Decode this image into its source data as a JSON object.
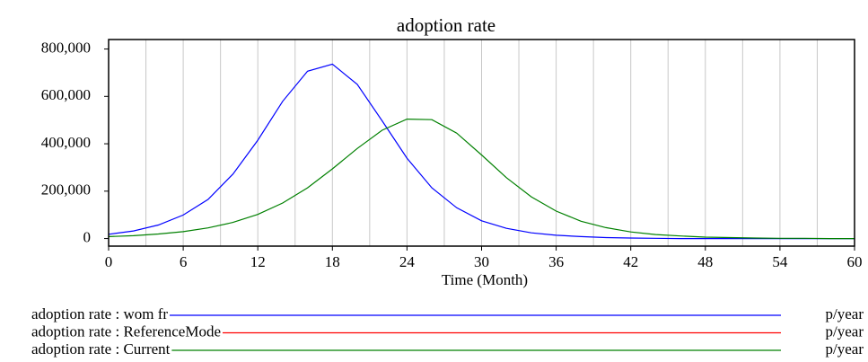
{
  "chart_data": {
    "type": "line",
    "title": "adoption rate",
    "x_label": "Time (Month)",
    "x": [
      0,
      2,
      4,
      6,
      8,
      10,
      12,
      14,
      16,
      18,
      20,
      22,
      24,
      26,
      28,
      30,
      32,
      34,
      36,
      38,
      40,
      42,
      44,
      46,
      48,
      50,
      52,
      54,
      56,
      58,
      60
    ],
    "series": [
      {
        "name": "adoption rate : wom fr",
        "unit": "p/year",
        "color": "#0000ff",
        "values": [
          18000,
          32000,
          57000,
          99000,
          165000,
          272000,
          415000,
          579000,
          706000,
          736000,
          651000,
          497000,
          339000,
          214000,
          130000,
          75000,
          43000,
          24000,
          14000,
          8000,
          4000,
          2000,
          1000,
          0,
          0,
          0,
          0,
          0,
          0,
          0,
          0
        ]
      },
      {
        "name": "adoption rate : ReferenceMode",
        "unit": "p/year",
        "color": "#ff0000",
        "values": [
          null,
          null,
          null,
          null,
          null,
          null,
          null,
          null,
          null,
          null,
          null,
          null,
          null,
          null,
          null,
          null,
          null,
          null,
          null,
          null,
          null,
          null,
          null,
          null,
          null,
          null,
          null,
          null,
          null,
          null,
          null
        ]
      },
      {
        "name": "adoption rate : Current",
        "unit": "p/year",
        "color": "#008000",
        "values": [
          8000,
          12000,
          19000,
          29000,
          45000,
          68000,
          102000,
          150000,
          214000,
          294000,
          380000,
          457000,
          504000,
          502000,
          445000,
          353000,
          257000,
          176000,
          116000,
          73000,
          46000,
          28000,
          17000,
          11000,
          6000,
          4000,
          2000,
          1000,
          1000,
          0,
          0
        ]
      }
    ],
    "xlim": [
      0,
      60
    ],
    "xticks": [
      0,
      6,
      12,
      18,
      24,
      30,
      36,
      42,
      48,
      54,
      60
    ],
    "xgrid": [
      0,
      3,
      6,
      9,
      12,
      15,
      18,
      21,
      24,
      27,
      30,
      33,
      36,
      39,
      42,
      45,
      48,
      51,
      54,
      57,
      60
    ],
    "ylim": [
      -32000,
      840000
    ],
    "yticks": [
      0,
      {
        "value": 200000,
        "label": "200,000"
      },
      {
        "value": 400000,
        "label": "400,000"
      },
      {
        "value": 600000,
        "label": "600,000"
      },
      {
        "value": 800000,
        "label": "800,000"
      }
    ]
  }
}
